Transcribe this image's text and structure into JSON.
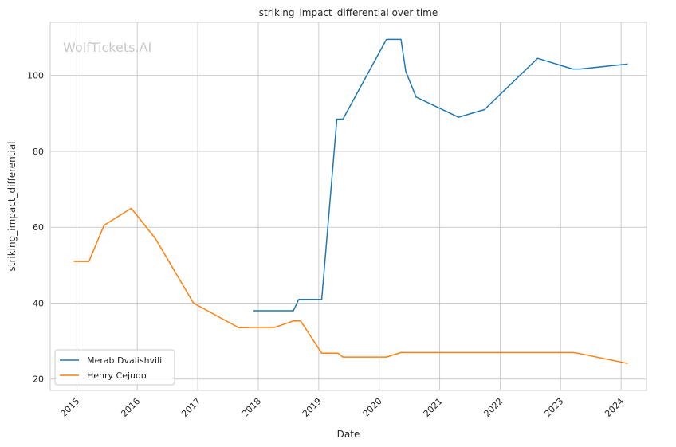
{
  "chart_data": {
    "type": "line",
    "title": "striking_impact_differential over time",
    "xlabel": "Date",
    "ylabel": "striking_impact_differential",
    "watermark": "WolfTickets.AI",
    "xlim": [
      2014.56,
      2024.42
    ],
    "ylim": [
      17,
      114
    ],
    "x_ticks": [
      2015,
      2016,
      2017,
      2018,
      2019,
      2020,
      2021,
      2022,
      2023,
      2024
    ],
    "x_tick_labels": [
      "2015",
      "2016",
      "2017",
      "2018",
      "2019",
      "2020",
      "2021",
      "2022",
      "2023",
      "2024"
    ],
    "y_ticks": [
      20,
      40,
      60,
      80,
      100
    ],
    "y_tick_labels": [
      "20",
      "40",
      "60",
      "80",
      "100"
    ],
    "grid": true,
    "legend_position": "lower-left",
    "series": [
      {
        "name": "Merab Dvalishvili",
        "color": "#1f77b4",
        "points": [
          [
            2017.92,
            38.0
          ],
          [
            2018.58,
            38.0
          ],
          [
            2018.67,
            41.0
          ],
          [
            2019.05,
            41.0
          ],
          [
            2019.3,
            88.5
          ],
          [
            2019.4,
            88.5
          ],
          [
            2020.12,
            109.5
          ],
          [
            2020.36,
            109.5
          ],
          [
            2020.44,
            101.0
          ],
          [
            2020.61,
            94.3
          ],
          [
            2021.31,
            89.0
          ],
          [
            2021.74,
            91.0
          ],
          [
            2022.62,
            104.5
          ],
          [
            2023.2,
            101.7
          ],
          [
            2023.32,
            101.7
          ],
          [
            2024.11,
            103.0
          ]
        ]
      },
      {
        "name": "Henry Cejudo",
        "color": "#ff7f0e",
        "points": [
          [
            2014.95,
            51.0
          ],
          [
            2015.2,
            51.0
          ],
          [
            2015.45,
            60.5
          ],
          [
            2015.9,
            65.0
          ],
          [
            2016.3,
            57.0
          ],
          [
            2016.93,
            40.0
          ],
          [
            2017.68,
            33.5
          ],
          [
            2017.92,
            33.6
          ],
          [
            2018.27,
            33.6
          ],
          [
            2018.58,
            35.3
          ],
          [
            2018.7,
            35.3
          ],
          [
            2019.05,
            26.8
          ],
          [
            2019.32,
            26.8
          ],
          [
            2019.4,
            25.8
          ],
          [
            2020.12,
            25.8
          ],
          [
            2020.36,
            27.0
          ],
          [
            2023.2,
            27.0
          ],
          [
            2023.32,
            26.7
          ],
          [
            2024.11,
            24.1
          ]
        ]
      }
    ]
  }
}
